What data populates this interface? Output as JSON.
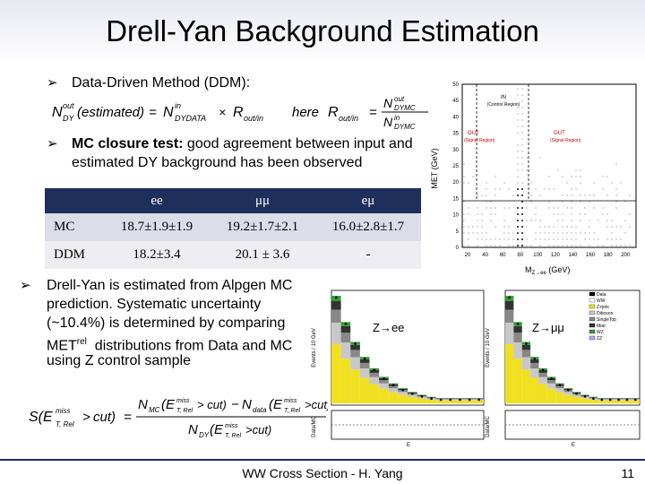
{
  "title": "Drell-Yan Background Estimation",
  "bullet1": "Data-Driven Method (DDM):",
  "bullet2_bold": "MC closure test:",
  "bullet2_rest": " good agreement between input and",
  "bullet2_line2": "estimated DY background has been observed",
  "bullet3_lines": [
    "Drell-Yan is estimated from Alpgen MC",
    "prediction. Systematic uncertainty",
    "(~10.4%)  is determined by comparing",
    "distributions from Data and MC",
    "using  Z control sample"
  ],
  "bullet3_met": "MET",
  "bullet3_rel": "rel",
  "formula1": {
    "lhs": "N",
    "lhs_sup": "out",
    "lhs_sub": "DY",
    "lhs_arg": "(estimated)",
    "eq": "=",
    "mid_sup": "in",
    "mid_sub": "DYDATA",
    "times": "×",
    "r": "R",
    "r_sub": "out/in",
    "here": "here",
    "rhs_r": "R",
    "rhs_r_sub": "out/in",
    "num_sup": "out",
    "num_sub": "DYMC",
    "den_sup": "in",
    "den_sub": "DYMC"
  },
  "formula2": {
    "lhs": "S(E",
    "lhs_sup": "miss",
    "lhs_sub": "T, Rel",
    "cut": "cut)",
    "num_a": "N",
    "num_a_sub": "MC",
    "num_b": "N",
    "num_b_sub": "data",
    "den": "N",
    "den_sub": "DY"
  },
  "table": {
    "headers": [
      "",
      "ee",
      "μμ",
      "eμ"
    ],
    "rows": [
      {
        "label": "MC",
        "values": [
          "18.7±1.9±1.9",
          "19.2±1.7±2.1",
          "16.0±2.8±1.7"
        ]
      },
      {
        "label": "DDM",
        "values": [
          "18.2±3.4",
          "20.1 ± 3.6",
          "-"
        ]
      }
    ]
  },
  "scatter": {
    "ylabel": "MET (GeV)",
    "xlabel": "M",
    "xlabel_sub": "Z→ee",
    "xlabel_unit": " (GeV)",
    "yticks": [
      "0",
      "5",
      "10",
      "15",
      "20",
      "25",
      "30",
      "35",
      "40",
      "45",
      "50"
    ],
    "xticks": [
      "20",
      "40",
      "60",
      "80",
      "100",
      "120",
      "140",
      "160",
      "180",
      "200"
    ],
    "region_in": "IN",
    "region_in_sub": "(Control Region)",
    "region_out_left": "OUT",
    "region_out_left_sub": "(Signal Region)",
    "region_out_right": "OUT",
    "region_out_right_sub": "(Signal Region)"
  },
  "hist_left": {
    "label": "Z→ee",
    "ylabel": "Events / 10 GeV",
    "xlabel": "E",
    "ratio_label": "Data/MC"
  },
  "hist_right": {
    "label": "Z→μμ",
    "ylabel": "Events / 10 GeV",
    "xlabel": "E",
    "ratio_label": "Data/MC",
    "legend": [
      "Data",
      "WW",
      "Z+jets",
      "Diboson",
      "SingleTop",
      "ttbar",
      "WZ",
      "ZZ"
    ]
  },
  "footer": {
    "center": "WW Cross Section - H. Yang",
    "page": "11"
  }
}
